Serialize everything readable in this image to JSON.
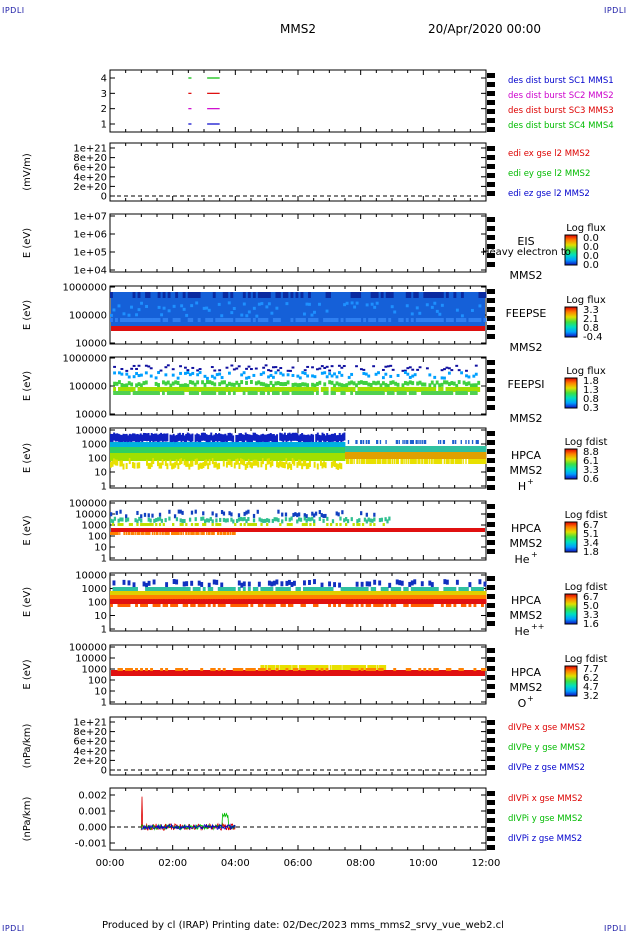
{
  "corner_labels": {
    "top_left": "IPDLI",
    "top_right": "IPDLI",
    "bottom_left": "IPDLI",
    "bottom_right": "IPDLI"
  },
  "header": {
    "title": "MMS2",
    "date": "20/Apr/2020 00:00"
  },
  "footer": {
    "text": "Produced by cl (IRAP)   Printing date: 02/Dec/2023   mms_mms2_srvy_vue_web2.cl"
  },
  "colors": {
    "mms1": "#0000cc",
    "mms2": "#cc00cc",
    "mms3": "#dd0000",
    "mms4": "#00bb00"
  },
  "time_axis": {
    "ticks": [
      "00:00",
      "02:00",
      "04:00",
      "06:00",
      "08:00",
      "10:00",
      "12:00"
    ]
  },
  "chart_data": [
    {
      "type": "line",
      "panel": "burst",
      "ylabel": "",
      "yticks": [
        "1",
        "2",
        "3",
        "4"
      ],
      "legend": [
        {
          "text": "des dist burst SC1 MMS1",
          "color": "#0000cc"
        },
        {
          "text": "des dist burst SC2 MMS2",
          "color": "#cc00cc"
        },
        {
          "text": "des dist burst SC3 MMS3",
          "color": "#dd0000"
        },
        {
          "text": "des dist burst SC4 MMS4",
          "color": "#00bb00"
        }
      ],
      "series": [
        {
          "name": "des dist burst SC1 MMS1",
          "y": 1,
          "intervals": [
            [
              2.5,
              2.6
            ],
            [
              3.1,
              3.5
            ]
          ]
        },
        {
          "name": "des dist burst SC2 MMS2",
          "y": 2,
          "intervals": [
            [
              2.5,
              2.6
            ],
            [
              3.1,
              3.5
            ]
          ]
        },
        {
          "name": "des dist burst SC3 MMS3",
          "y": 3,
          "intervals": [
            [
              2.5,
              2.6
            ],
            [
              3.1,
              3.5
            ]
          ]
        },
        {
          "name": "des dist burst SC4 MMS4",
          "y": 4,
          "intervals": [
            [
              2.5,
              2.6
            ],
            [
              3.1,
              3.5
            ]
          ]
        }
      ]
    },
    {
      "type": "line",
      "panel": "edi",
      "ylabel": "(mV/m)",
      "yticks": [
        "0",
        "2e+20",
        "4e+20",
        "6e+20",
        "8e+20",
        "1e+21"
      ],
      "legend": [
        {
          "text": "edi ex gse l2 MMS2",
          "color": "#dd0000"
        },
        {
          "text": "edi ey gse l2 MMS2",
          "color": "#00bb00"
        },
        {
          "text": "edi ez gse l2 MMS2",
          "color": "#0000cc"
        }
      ]
    },
    {
      "type": "heatmap",
      "panel": "eis",
      "ylabel": "E (eV)",
      "yticks": [
        "1e+04",
        "1e+05",
        "1e+06",
        "1e+07"
      ],
      "instrument": "EIS",
      "spacecraft": "MMS2",
      "overlay_label": "Heavy electron to",
      "cbar_title": "Log flux",
      "cbar_ticks": [
        "0.0",
        "0.0",
        "0.0",
        "0.0"
      ]
    },
    {
      "type": "heatmap",
      "panel": "feepse",
      "ylabel": "E (eV)",
      "yticks": [
        "10000",
        "100000",
        "1000000"
      ],
      "instrument": "FEEPSE",
      "spacecraft": "MMS2",
      "cbar_title": "Log flux",
      "cbar_ticks": [
        "3.3",
        "2.1",
        "0.8",
        "-0.4"
      ]
    },
    {
      "type": "heatmap",
      "panel": "feepsi",
      "ylabel": "E (eV)",
      "yticks": [
        "10000",
        "100000",
        "1000000"
      ],
      "instrument": "FEEPSI",
      "spacecraft": "MMS2",
      "cbar_title": "Log flux",
      "cbar_ticks": [
        "1.8",
        "1.3",
        "0.8",
        "0.3"
      ]
    },
    {
      "type": "heatmap",
      "panel": "hpca_h",
      "ylabel": "E (eV)",
      "yticks": [
        "1",
        "10",
        "100",
        "1000",
        "10000"
      ],
      "instrument": "HPCA",
      "spacecraft": "MMS2",
      "species": "H",
      "species_sup": "+",
      "cbar_title": "Log fdist",
      "cbar_ticks": [
        "8.8",
        "6.1",
        "3.3",
        "0.6"
      ]
    },
    {
      "type": "heatmap",
      "panel": "hpca_he",
      "ylabel": "E (eV)",
      "yticks": [
        "1",
        "10",
        "100",
        "1000",
        "10000",
        "100000"
      ],
      "instrument": "HPCA",
      "spacecraft": "MMS2",
      "species": "He",
      "species_sup": "+",
      "cbar_title": "Log fdist",
      "cbar_ticks": [
        "6.7",
        "5.1",
        "3.4",
        "1.8"
      ]
    },
    {
      "type": "heatmap",
      "panel": "hpca_he2",
      "ylabel": "E (eV)",
      "yticks": [
        "1",
        "10",
        "100",
        "1000",
        "10000"
      ],
      "instrument": "HPCA",
      "spacecraft": "MMS2",
      "species": "He",
      "species_sup": "++",
      "cbar_title": "Log fdist",
      "cbar_ticks": [
        "6.7",
        "5.0",
        "3.3",
        "1.6"
      ]
    },
    {
      "type": "heatmap",
      "panel": "hpca_o",
      "ylabel": "E (eV)",
      "yticks": [
        "1",
        "10",
        "100",
        "1000",
        "10000",
        "100000"
      ],
      "instrument": "HPCA",
      "spacecraft": "MMS2",
      "species": "O",
      "species_sup": "+",
      "cbar_title": "Log fdist",
      "cbar_ticks": [
        "7.7",
        "6.2",
        "4.7",
        "3.2"
      ]
    },
    {
      "type": "line",
      "panel": "divpe",
      "ylabel": "(nPa/km)",
      "yticks": [
        "0",
        "2e+20",
        "4e+20",
        "6e+20",
        "8e+20",
        "1e+21"
      ],
      "legend": [
        {
          "text": "dIVPe x gse MMS2",
          "color": "#dd0000"
        },
        {
          "text": "dIVPe y gse MMS2",
          "color": "#00bb00"
        },
        {
          "text": "dIVPe z gse MMS2",
          "color": "#0000cc"
        }
      ]
    },
    {
      "type": "line",
      "panel": "divpi",
      "ylabel": "(nPa/km)",
      "yticks": [
        "-0.001",
        "0.000",
        "0.001",
        "0.002"
      ],
      "legend": [
        {
          "text": "dIVPi x gse MMS2",
          "color": "#dd0000"
        },
        {
          "text": "dIVPi y gse MMS2",
          "color": "#00bb00"
        },
        {
          "text": "dIVPi z gse MMS2",
          "color": "#0000cc"
        }
      ]
    }
  ]
}
